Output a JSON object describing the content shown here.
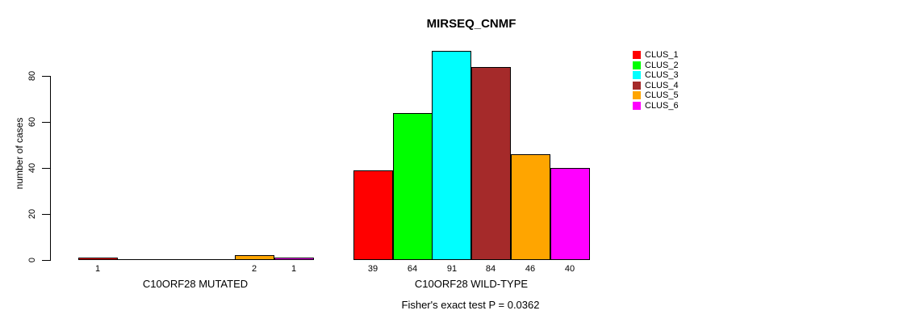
{
  "chart_data": {
    "type": "bar",
    "title": "MIRSEQ_CNMF",
    "ylabel": "number of cases",
    "ylim": [
      0,
      80
    ],
    "yticks": [
      0,
      20,
      40,
      60,
      80
    ],
    "grid": false,
    "legend_position": "right-inside",
    "categories": [
      "C10ORF28 MUTATED",
      "C10ORF28 WILD-TYPE"
    ],
    "groups": [
      {
        "label": "C10ORF28 MUTATED",
        "values": [
          1,
          0,
          0,
          0,
          2,
          1
        ]
      },
      {
        "label": "C10ORF28 WILD-TYPE",
        "values": [
          39,
          64,
          91,
          84,
          46,
          40
        ]
      }
    ],
    "series_names": [
      "CLUS_1",
      "CLUS_2",
      "CLUS_3",
      "CLUS_4",
      "CLUS_5",
      "CLUS_6"
    ],
    "colors": [
      "#ff0000",
      "#00ff00",
      "#00ffff",
      "#a52a2a",
      "#ffa500",
      "#ff00ff"
    ],
    "bar_border_color": "#000000",
    "annotation": "Fisher's exact test P = 0.0362"
  }
}
